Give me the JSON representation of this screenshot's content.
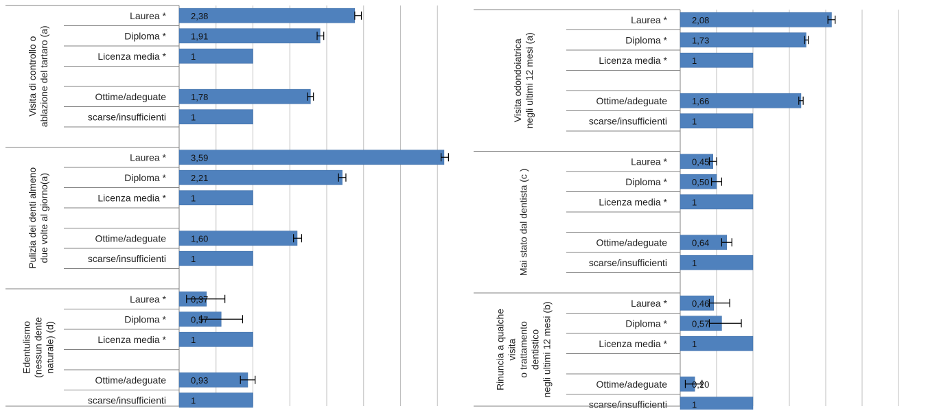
{
  "colors": {
    "bar": "#4f81bd",
    "bar_edge": "#3a6aa3",
    "grid": "#bfbfbf",
    "axis": "#808080",
    "errorbar": "#000000"
  },
  "chart_data": [
    {
      "type": "bar",
      "orientation": "horizontal",
      "grid": true,
      "xlim": [
        0,
        4
      ],
      "groups": [
        {
          "label": "Visita di controllo o ablazione del tartaro (a)",
          "label_lines": [
            "Visita di controllo o",
            "ablazione del tartaro (a)"
          ],
          "rows": [
            {
              "category": "Laurea *",
              "value": 2.38,
              "value_label": "2,38",
              "err_low": 2.38,
              "err_high": 2.47
            },
            {
              "category": "Diploma *",
              "value": 1.91,
              "value_label": "1,91",
              "err_low": 1.87,
              "err_high": 1.96
            },
            {
              "category": "Licenza media *",
              "value": 1,
              "value_label": "1"
            },
            {
              "category": "",
              "value": null,
              "value_label": ""
            },
            {
              "category": "Ottime/adeguate",
              "value": 1.78,
              "value_label": "1,78",
              "err_low": 1.74,
              "err_high": 1.82
            },
            {
              "category": "scarse/insufficienti",
              "value": 1,
              "value_label": "1"
            },
            {
              "category": "",
              "value": null,
              "value_label": ""
            }
          ]
        },
        {
          "label": "Pulizia dei denti almeno due volte al giorno(a)",
          "label_lines": [
            "Pulizia dei denti almeno",
            "due volte al giorno(a)"
          ],
          "rows": [
            {
              "category": "Laurea *",
              "value": 3.59,
              "value_label": "3,59",
              "err_low": 3.55,
              "err_high": 3.65
            },
            {
              "category": "Diploma *",
              "value": 2.21,
              "value_label": "2,21",
              "err_low": 2.16,
              "err_high": 2.26
            },
            {
              "category": "Licenza media *",
              "value": 1,
              "value_label": "1"
            },
            {
              "category": "",
              "value": null,
              "value_label": ""
            },
            {
              "category": "Ottime/adeguate",
              "value": 1.6,
              "value_label": "1,60",
              "err_low": 1.55,
              "err_high": 1.66
            },
            {
              "category": "scarse/insufficienti",
              "value": 1,
              "value_label": "1"
            },
            {
              "category": "",
              "value": null,
              "value_label": ""
            }
          ]
        },
        {
          "label": "Edentulismo (nessun dente naturale) (d)",
          "label_lines": [
            "Edentulismo",
            "(nessun dente",
            "naturale) (d)"
          ],
          "rows": [
            {
              "category": "Laurea *",
              "value": 0.37,
              "value_label": "0,37",
              "err_low": 0.1,
              "err_high": 0.62
            },
            {
              "category": "Diploma *",
              "value": 0.57,
              "value_label": "0,57",
              "err_low": 0.3,
              "err_high": 0.86
            },
            {
              "category": "Licenza media *",
              "value": 1,
              "value_label": "1"
            },
            {
              "category": "",
              "value": null,
              "value_label": ""
            },
            {
              "category": "Ottime/adeguate",
              "value": 0.93,
              "value_label": "0,93",
              "err_low": 0.83,
              "err_high": 1.03
            },
            {
              "category": "scarse/insufficienti",
              "value": 1,
              "value_label": "1"
            }
          ]
        }
      ]
    },
    {
      "type": "bar",
      "orientation": "horizontal",
      "grid": true,
      "xlim": [
        0,
        2.5
      ],
      "groups": [
        {
          "label": "Visita odondoiatrica negli ultimi 12 mesi (a)",
          "label_lines": [
            "Visita odondoiatrica",
            "negli ultimi 12 mesi (a)"
          ],
          "rows": [
            {
              "category": "Laurea *",
              "value": 2.08,
              "value_label": "2,08",
              "err_low": 2.03,
              "err_high": 2.13
            },
            {
              "category": "Diploma *",
              "value": 1.73,
              "value_label": "1,73",
              "err_low": 1.71,
              "err_high": 1.76
            },
            {
              "category": "Licenza media *",
              "value": 1,
              "value_label": "1"
            },
            {
              "category": "",
              "value": null,
              "value_label": ""
            },
            {
              "category": "Ottime/adeguate",
              "value": 1.66,
              "value_label": "1,66",
              "err_low": 1.63,
              "err_high": 1.69
            },
            {
              "category": "scarse/insufficienti",
              "value": 1,
              "value_label": "1"
            },
            {
              "category": "",
              "value": null,
              "value_label": ""
            }
          ]
        },
        {
          "label": "Mai stato dal dentista (c)",
          "label_lines": [
            "Mai stato dal dentista (c )"
          ],
          "rows": [
            {
              "category": "Laurea *",
              "value": 0.45,
              "value_label": "0,45",
              "err_low": 0.4,
              "err_high": 0.5
            },
            {
              "category": "Diploma *",
              "value": 0.5,
              "value_label": "0,50",
              "err_low": 0.43,
              "err_high": 0.57
            },
            {
              "category": "Licenza media *",
              "value": 1,
              "value_label": "1"
            },
            {
              "category": "",
              "value": null,
              "value_label": ""
            },
            {
              "category": "Ottime/adeguate",
              "value": 0.64,
              "value_label": "0,64",
              "err_low": 0.57,
              "err_high": 0.71
            },
            {
              "category": "scarse/insufficienti",
              "value": 1,
              "value_label": "1"
            },
            {
              "category": "",
              "value": null,
              "value_label": ""
            }
          ]
        },
        {
          "label": "Rinuncia a qualche visita o trattamento dentistico negli ultimi 12 mesi (b)",
          "label_lines": [
            "Rinuncia a qualche",
            "visita",
            "o trattamento",
            "dentistico",
            "negli ultimi 12 mesi (b)"
          ],
          "rows": [
            {
              "category": "Laurea *",
              "value": 0.46,
              "value_label": "0,46",
              "err_low": 0.4,
              "err_high": 0.68
            },
            {
              "category": "Diploma *",
              "value": 0.57,
              "value_label": "0,57",
              "err_low": 0.4,
              "err_high": 0.84
            },
            {
              "category": "Licenza media *",
              "value": 1,
              "value_label": "1"
            },
            {
              "category": "",
              "value": null,
              "value_label": ""
            },
            {
              "category": "Ottime/adeguate",
              "value": 0.2,
              "value_label": "0,20",
              "err_low": 0.07,
              "err_high": 0.3
            },
            {
              "category": "scarse/insufficienti",
              "value": 1,
              "value_label": "1"
            }
          ]
        }
      ]
    }
  ]
}
